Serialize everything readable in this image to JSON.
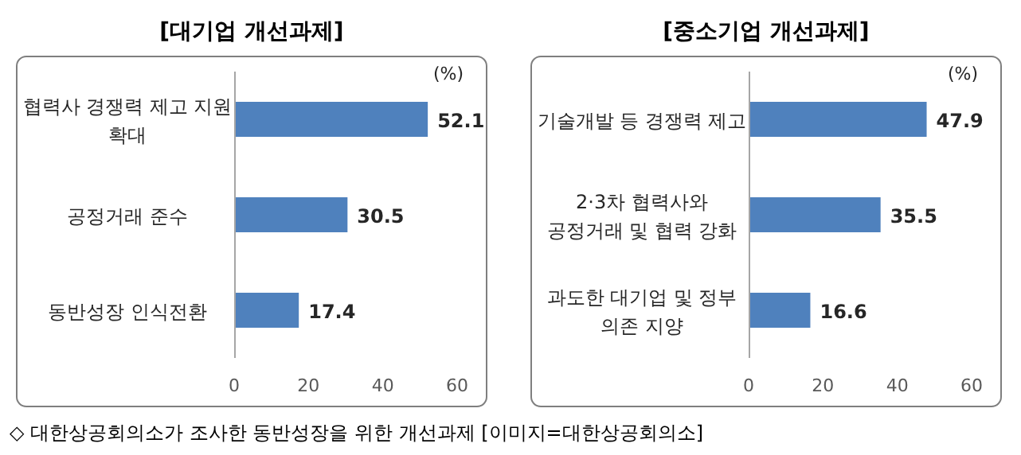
{
  "chart_data": [
    {
      "type": "bar",
      "orientation": "horizontal",
      "title": "[대기업 개선과제]",
      "xlabel": "(%)",
      "categories": [
        "협력사 경쟁력 제고 지원 확대",
        "공정거래 준수",
        "동반성장 인식전환"
      ],
      "values": [
        52.1,
        30.5,
        17.4
      ],
      "color": "#4f81bd",
      "xlim": [
        0,
        60
      ],
      "xticks": [
        0,
        20,
        40,
        60
      ],
      "data_labels": true,
      "annotations": [
        "◇ 대한상공회의소가 조사한 동반성장을 위한 개선과제 [이미지=대한상공회의소]"
      ]
    },
    {
      "type": "bar",
      "orientation": "horizontal",
      "title": "[중소기업 개선과제]",
      "xlabel": "(%)",
      "categories": [
        "기술개발 등 경쟁력 제고",
        "2·3차 협력사와 공정거래 및 협력 강화",
        "과도한 대기업 및 정부 의존 지양"
      ],
      "values": [
        47.9,
        35.5,
        16.6
      ],
      "color": "#4f81bd",
      "xlim": [
        0,
        60
      ],
      "xticks": [
        0,
        20,
        40,
        60
      ],
      "data_labels": true
    }
  ]
}
